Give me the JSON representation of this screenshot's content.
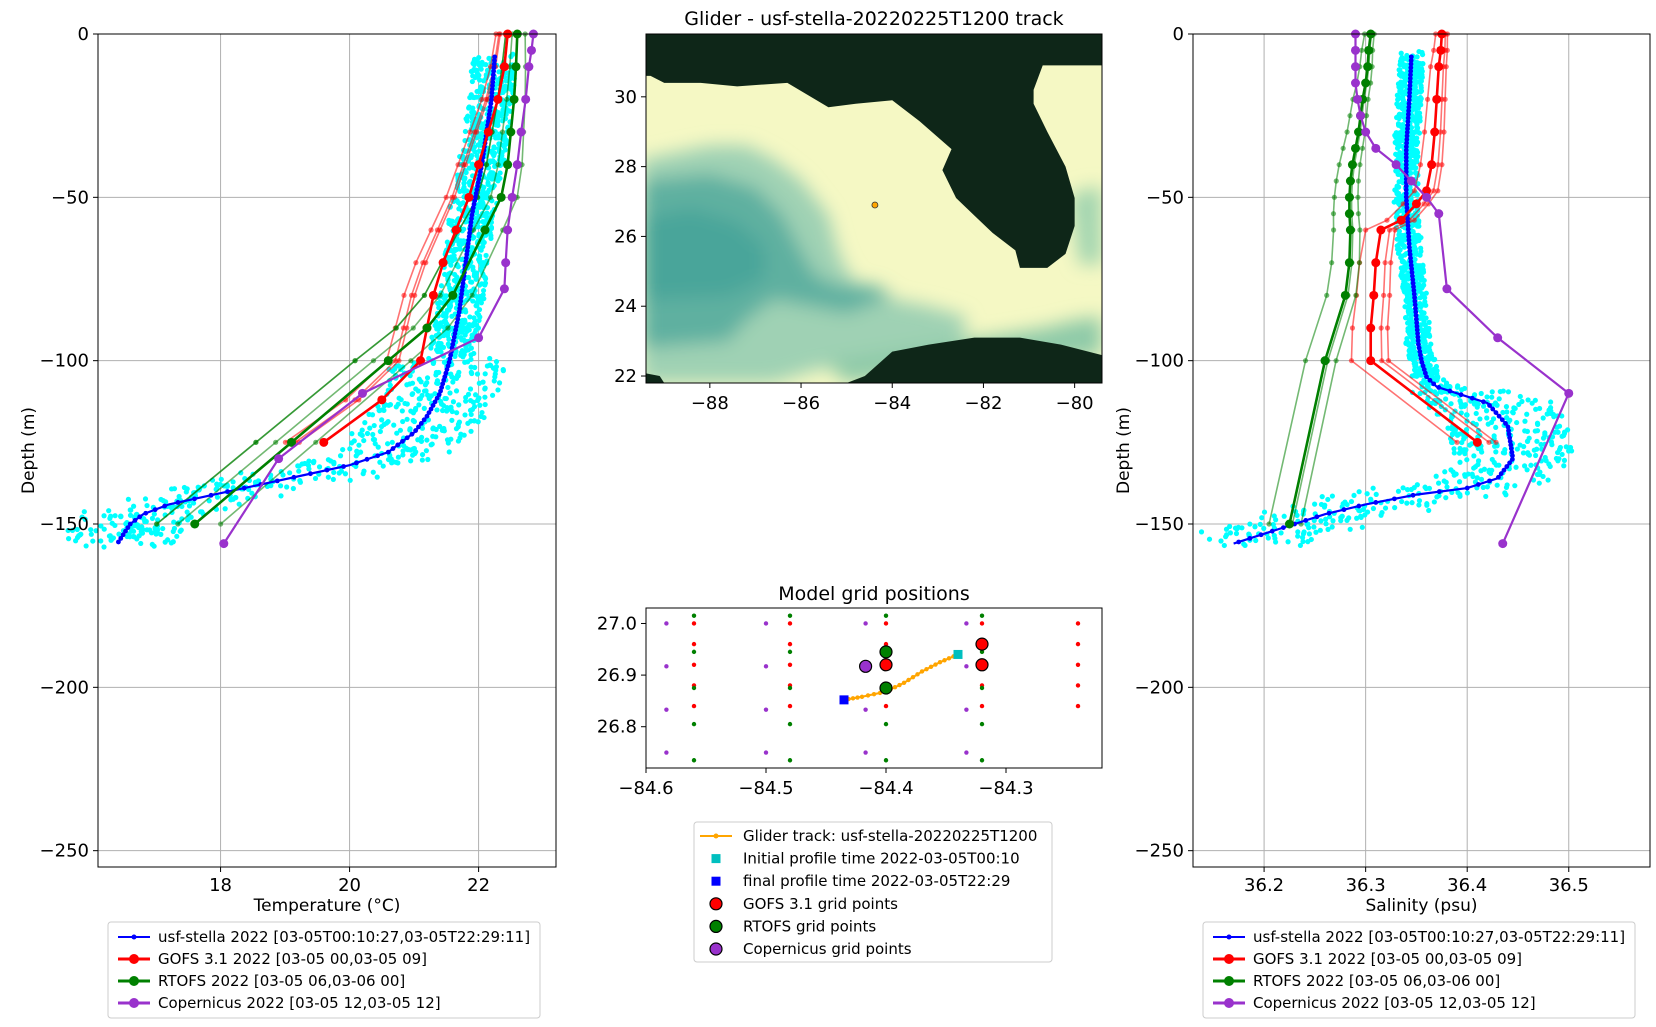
{
  "colors": {
    "glider": "#0000ff",
    "glider_raw": "#00ffff",
    "gofs": "#ff0000",
    "rtofs": "#008000",
    "copernicus": "#9932cc",
    "track": "#ffa500",
    "initial": "#00bfbf",
    "final": "#0000ff",
    "land": "#0e2618"
  },
  "chart_data": [
    {
      "type": "line",
      "panel": "temperature",
      "xlabel": "Temperature (°C)",
      "ylabel": "Depth (m)",
      "xlim": [
        16.1,
        23.2
      ],
      "ylim": [
        -255,
        0
      ],
      "xticks": [
        "18",
        "20",
        "22"
      ],
      "yticks": [
        "0",
        "−50",
        "−100",
        "−150",
        "−200",
        "−250"
      ],
      "grid": true,
      "legend_placement": "below",
      "series": [
        {
          "name": "usf-stella 2022 [03-05T00:10:27,03-05T22:29:11]",
          "x": [
            22.25,
            22.2,
            22.05,
            21.9,
            21.8,
            21.7,
            21.55,
            21.4,
            21.2,
            21.0,
            20.6,
            20.0,
            19.3,
            18.6,
            17.9,
            17.2,
            16.8,
            16.6,
            16.5,
            16.4
          ],
          "y": [
            -7,
            -20,
            -40,
            -55,
            -70,
            -85,
            -100,
            -110,
            -117,
            -122,
            -128,
            -132,
            -135,
            -138,
            -141,
            -144,
            -147,
            -150,
            -153,
            -156
          ]
        },
        {
          "name": "GOFS 3.1 2022 [03-05 00,03-05 09]",
          "x": [
            22.45,
            22.4,
            22.3,
            22.15,
            22.0,
            21.85,
            21.65,
            21.45,
            21.3,
            21.2,
            21.1,
            20.5,
            19.6
          ],
          "y": [
            0,
            -10,
            -20,
            -30,
            -40,
            -50,
            -60,
            -70,
            -80,
            -90,
            -100,
            -112,
            -125
          ]
        },
        {
          "name": "RTOFS 2022 [03-05 06,03-06 00]",
          "x": [
            22.6,
            22.58,
            22.55,
            22.5,
            22.45,
            22.35,
            22.1,
            21.6,
            21.2,
            20.6,
            19.1,
            17.6
          ],
          "y": [
            0,
            -10,
            -20,
            -30,
            -40,
            -50,
            -60,
            -80,
            -90,
            -100,
            -125,
            -150
          ]
        },
        {
          "name": "Copernicus 2022 [03-05 12,03-05 12]",
          "x": [
            22.85,
            22.82,
            22.78,
            22.73,
            22.66,
            22.6,
            22.52,
            22.45,
            22.42,
            22.4,
            22.0,
            20.2,
            18.9,
            18.05
          ],
          "y": [
            0,
            -5,
            -10,
            -20,
            -30,
            -40,
            -50,
            -60,
            -70,
            -78,
            -93,
            -110,
            -130,
            -156
          ]
        }
      ]
    },
    {
      "type": "line",
      "panel": "salinity",
      "xlabel": "Salinity (psu)",
      "ylabel": "Depth (m)",
      "xlim": [
        36.13,
        36.58
      ],
      "ylim": [
        -255,
        0
      ],
      "xticks": [
        "36.2",
        "36.3",
        "36.4",
        "36.5"
      ],
      "yticks": [
        "0",
        "−50",
        "−100",
        "−150",
        "−200",
        "−250"
      ],
      "grid": true,
      "legend_placement": "below",
      "series": [
        {
          "name": "usf-stella 2022 [03-05T00:10:27,03-05T22:29:11]",
          "x": [
            36.345,
            36.343,
            36.34,
            36.34,
            36.343,
            36.348,
            36.352,
            36.355,
            36.36,
            36.37,
            36.39,
            36.42,
            36.44,
            36.445,
            36.43,
            36.4,
            36.35,
            36.3,
            36.26,
            36.23,
            36.2,
            36.17
          ],
          "y": [
            -7,
            -20,
            -35,
            -50,
            -65,
            -80,
            -95,
            -100,
            -105,
            -108,
            -110,
            -113,
            -120,
            -130,
            -136,
            -139,
            -141,
            -144,
            -147,
            -150,
            -153,
            -156
          ]
        },
        {
          "name": "GOFS 3.1 2022 [03-05 00,03-05 09]",
          "x": [
            36.375,
            36.374,
            36.372,
            36.37,
            36.368,
            36.365,
            36.36,
            36.35,
            36.335,
            36.315,
            36.31,
            36.308,
            36.305,
            36.305,
            36.41
          ],
          "y": [
            0,
            -5,
            -10,
            -20,
            -30,
            -40,
            -48,
            -52,
            -57,
            -60,
            -70,
            -80,
            -90,
            -100,
            -125
          ]
        },
        {
          "name": "RTOFS 2022 [03-05 06,03-06 00]",
          "x": [
            36.305,
            36.303,
            36.302,
            36.3,
            36.297,
            36.295,
            36.293,
            36.29,
            36.287,
            36.285,
            36.284,
            36.284,
            36.285,
            36.284,
            36.28,
            36.26,
            36.225
          ],
          "y": [
            0,
            -5,
            -10,
            -15,
            -20,
            -25,
            -30,
            -35,
            -40,
            -45,
            -50,
            -55,
            -60,
            -70,
            -80,
            -100,
            -150
          ]
        },
        {
          "name": "Copernicus 2022 [03-05 12,03-05 12]",
          "x": [
            36.29,
            36.29,
            36.29,
            36.29,
            36.292,
            36.295,
            36.3,
            36.31,
            36.33,
            36.345,
            36.36,
            36.372,
            36.38,
            36.43,
            36.5,
            36.435
          ],
          "y": [
            0,
            -5,
            -10,
            -15,
            -20,
            -25,
            -30,
            -35,
            -40,
            -45,
            -50,
            -55,
            -78,
            -93,
            -110,
            -156
          ]
        }
      ]
    },
    {
      "type": "map",
      "panel": "track",
      "title": "Glider - usf-stella-20220225T1200 track",
      "xlim": [
        -89.4,
        -79.4
      ],
      "ylim": [
        21.8,
        31.8
      ],
      "xticks": [
        "−88",
        "−86",
        "−84",
        "−82",
        "−80"
      ],
      "yticks": [
        "22",
        "24",
        "26",
        "28",
        "30"
      ],
      "glider_position": {
        "lon": -84.38,
        "lat": 26.9
      }
    },
    {
      "type": "scatter",
      "panel": "grid",
      "title": "Model grid positions",
      "xlim": [
        -84.6,
        -84.22
      ],
      "ylim": [
        26.72,
        27.03
      ],
      "xticks": [
        "−84.6",
        "−84.5",
        "−84.4",
        "−84.3"
      ],
      "yticks": [
        "26.8",
        "26.9",
        "27.0"
      ],
      "track": {
        "lon": [
          -84.435,
          -84.42,
          -84.4,
          -84.385,
          -84.37,
          -84.355,
          -84.34
        ],
        "lat": [
          26.852,
          26.858,
          26.868,
          26.885,
          26.907,
          26.925,
          26.94
        ]
      },
      "initial_profile": {
        "lon": -84.34,
        "lat": 26.94
      },
      "final_profile": {
        "lon": -84.435,
        "lat": 26.852
      },
      "gofs_lons": [
        -84.56,
        -84.48,
        -84.4,
        -84.32,
        -84.24
      ],
      "gofs_lats": [
        26.84,
        26.88,
        26.92,
        26.96,
        27.0
      ],
      "rtofs_lons": [
        -84.56,
        -84.48,
        -84.4,
        -84.32
      ],
      "rtofs_lats": [
        26.735,
        26.805,
        26.875,
        26.945,
        27.015
      ],
      "copernicus_lons": [
        -84.583,
        -84.5,
        -84.417,
        -84.333
      ],
      "copernicus_lats": [
        26.75,
        26.833,
        26.917,
        27.0
      ],
      "gofs_selected": [
        [
          -84.4,
          26.92
        ],
        [
          -84.32,
          26.92
        ],
        [
          -84.32,
          26.96
        ]
      ],
      "rtofs_selected": [
        [
          -84.4,
          26.875
        ],
        [
          -84.4,
          26.945
        ]
      ],
      "copernicus_selected": [
        [
          -84.417,
          26.917
        ]
      ]
    }
  ],
  "legends": {
    "track": {
      "items": [
        "Glider track: usf-stella-20220225T1200",
        "Initial profile time 2022-03-05T00:10",
        "final profile time 2022-03-05T22:29",
        "GOFS 3.1 grid points",
        "RTOFS grid points",
        "Copernicus grid points"
      ]
    }
  }
}
